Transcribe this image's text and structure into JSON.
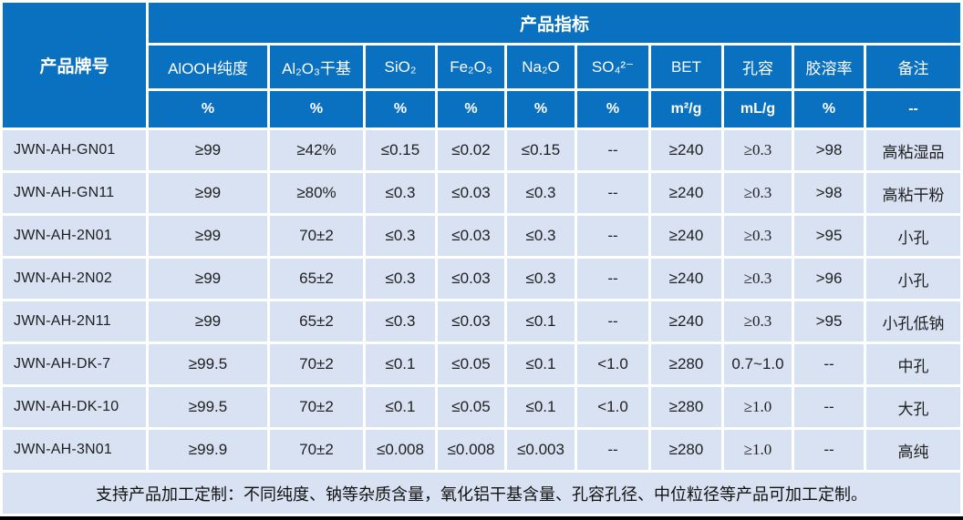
{
  "table": {
    "corner_header": "产品牌号",
    "group_header": "产品指标",
    "columns": [
      "AlOOH纯度",
      "Al₂O₃干基",
      "SiO₂",
      "Fe₂O₃",
      "Na₂O",
      "SO₄²⁻",
      "BET",
      "孔容",
      "胶溶率",
      "备注"
    ],
    "units": [
      "%",
      "%",
      "%",
      "%",
      "%",
      "%",
      "m²/g",
      "mL/g",
      "%",
      "--"
    ],
    "rows": [
      {
        "brand": "JWN-AH-GN01",
        "values": [
          "≥99",
          "≥42%",
          "≤0.15",
          "≤0.02",
          "≤0.15",
          "--",
          "≥240",
          "≥0.3",
          ">98",
          "高粘湿品"
        ]
      },
      {
        "brand": "JWN-AH-GN11",
        "values": [
          "≥99",
          "≥80%",
          "≤0.3",
          "≤0.03",
          "≤0.3",
          "--",
          "≥240",
          "≥0.3",
          ">98",
          "高粘干粉"
        ]
      },
      {
        "brand": "JWN-AH-2N01",
        "values": [
          "≥99",
          "70±2",
          "≤0.3",
          "≤0.03",
          "≤0.3",
          "--",
          "≥240",
          "≥0.3",
          ">95",
          "小孔"
        ]
      },
      {
        "brand": "JWN-AH-2N02",
        "values": [
          "≥99",
          "65±2",
          "≤0.3",
          "≤0.03",
          "≤0.3",
          "--",
          "≥240",
          "≥0.3",
          ">96",
          "小孔"
        ]
      },
      {
        "brand": "JWN-AH-2N11",
        "values": [
          "≥99",
          "65±2",
          "≤0.3",
          "≤0.03",
          "≤0.1",
          "--",
          "≥240",
          "≥0.3",
          ">95",
          "小孔低钠"
        ]
      },
      {
        "brand": "JWN-AH-DK-7",
        "values": [
          "≥99.5",
          "70±2",
          "≤0.1",
          "≤0.05",
          "≤0.1",
          "<1.0",
          "≥280",
          "0.7~1.0",
          "--",
          "中孔"
        ]
      },
      {
        "brand": "JWN-AH-DK-10",
        "values": [
          "≥99.5",
          "70±2",
          "≤0.1",
          "≤0.05",
          "≤0.1",
          "<1.0",
          "≥280",
          "≥1.0",
          "--",
          "大孔"
        ]
      },
      {
        "brand": "JWN-AH-3N01",
        "values": [
          "≥99.9",
          "70±2",
          "≤0.008",
          "≤0.008",
          "≤0.003",
          "--",
          "≥280",
          "≥1.0",
          "--",
          "高纯"
        ]
      }
    ],
    "footnote": "支持产品加工定制：不同纯度、钠等杂质含量，氧化铝干基含量、孔容孔径、中位粒径等产品可加工定制。"
  },
  "colors": {
    "header_bg": "#0A70C0",
    "row_bg": "#D9E2F3",
    "grid": "#FFFFFF",
    "header_text": "#FFFFFF",
    "body_text": "#1F1F1F",
    "bottom_bar": "#000000"
  }
}
